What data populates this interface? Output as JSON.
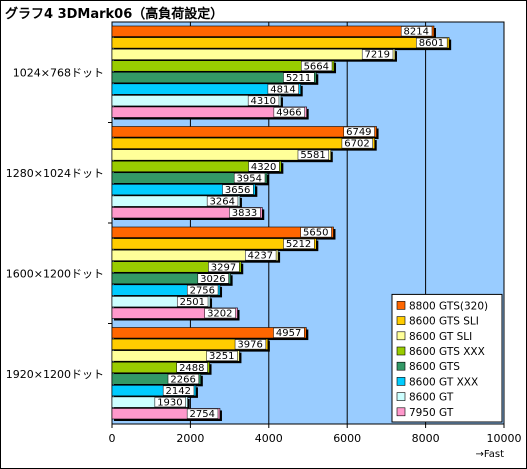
{
  "chart_data": {
    "type": "bar",
    "orientation": "horizontal",
    "title": "グラフ4 3DMark06（高負荷設定）",
    "categories": [
      "1024×768ドット",
      "1280×1024ドット",
      "1600×1200ドット",
      "1920×1200ドット"
    ],
    "series": [
      {
        "name": "8800 GTS(320)",
        "color": "#ff6600",
        "values": [
          8214,
          6749,
          5650,
          4957
        ]
      },
      {
        "name": "8600 GTS SLI",
        "color": "#ffcc00",
        "values": [
          8601,
          6702,
          5212,
          3976
        ]
      },
      {
        "name": "8600 GT SLI",
        "color": "#ffff99",
        "values": [
          7219,
          5581,
          4237,
          3251
        ]
      },
      {
        "name": "8600 GTS XXX",
        "color": "#99cc00",
        "values": [
          5664,
          4320,
          3297,
          2488
        ]
      },
      {
        "name": "8600 GTS",
        "color": "#339966",
        "values": [
          5211,
          3954,
          3026,
          2266
        ]
      },
      {
        "name": "8600 GT XXX",
        "color": "#00ccff",
        "values": [
          4814,
          3656,
          2756,
          2142
        ]
      },
      {
        "name": "8600 GT",
        "color": "#ccffff",
        "values": [
          4310,
          3264,
          2501,
          1930
        ]
      },
      {
        "name": "7950 GT",
        "color": "#ff99cc",
        "values": [
          4966,
          3833,
          3202,
          2754
        ]
      }
    ],
    "xlim": [
      0,
      10000
    ],
    "xticks": [
      0,
      2000,
      4000,
      6000,
      8000,
      10000
    ],
    "xlabel": "→Fast",
    "grid": true,
    "legend": "bottom-right",
    "plot_background": "#99ccff"
  }
}
